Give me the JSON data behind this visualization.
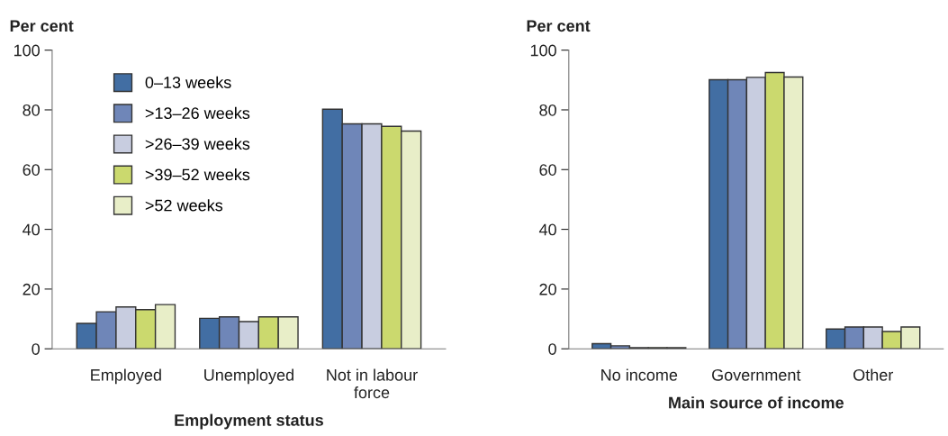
{
  "chart_data": [
    {
      "type": "bar",
      "ylabel": "Per cent",
      "xlabel": "Employment status",
      "categories": [
        "Employed",
        "Unemployed",
        "Not in labour\nforce"
      ],
      "ylim": [
        0,
        100
      ],
      "yticks": [
        0,
        20,
        40,
        60,
        80,
        100
      ],
      "grid": false,
      "legend": "top left",
      "series": [
        {
          "name": "0–13 weeks",
          "color": "#426ea3",
          "values": [
            8.5,
            10.2,
            80.2
          ]
        },
        {
          "name": ">13–26 weeks",
          "color": "#6f86b8",
          "values": [
            12.4,
            10.7,
            75.3
          ]
        },
        {
          "name": ">26–39 weeks",
          "color": "#c8cde0",
          "values": [
            14.0,
            9.1,
            75.3
          ]
        },
        {
          "name": ">39–52 weeks",
          "color": "#cbd96e",
          "values": [
            13.1,
            10.7,
            74.5
          ]
        },
        {
          "name": ">52 weeks",
          "color": "#e8eec8",
          "values": [
            14.8,
            10.7,
            72.9
          ]
        }
      ]
    },
    {
      "type": "bar",
      "ylabel": "Per cent",
      "xlabel": "Main source of income",
      "categories": [
        "No income",
        "Government",
        "Other"
      ],
      "ylim": [
        0,
        100
      ],
      "yticks": [
        0,
        20,
        40,
        60,
        80,
        100
      ],
      "grid": false,
      "series": [
        {
          "color": "#426ea3",
          "values": [
            1.7,
            90.1,
            6.6
          ]
        },
        {
          "color": "#6f86b8",
          "values": [
            1.0,
            90.1,
            7.3
          ]
        },
        {
          "color": "#c8cde0",
          "values": [
            0.4,
            90.9,
            7.3
          ]
        },
        {
          "color": "#cbd96e",
          "values": [
            0.4,
            92.5,
            5.8
          ]
        },
        {
          "color": "#e8eec8",
          "values": [
            0.4,
            91.0,
            7.3
          ]
        }
      ]
    }
  ]
}
